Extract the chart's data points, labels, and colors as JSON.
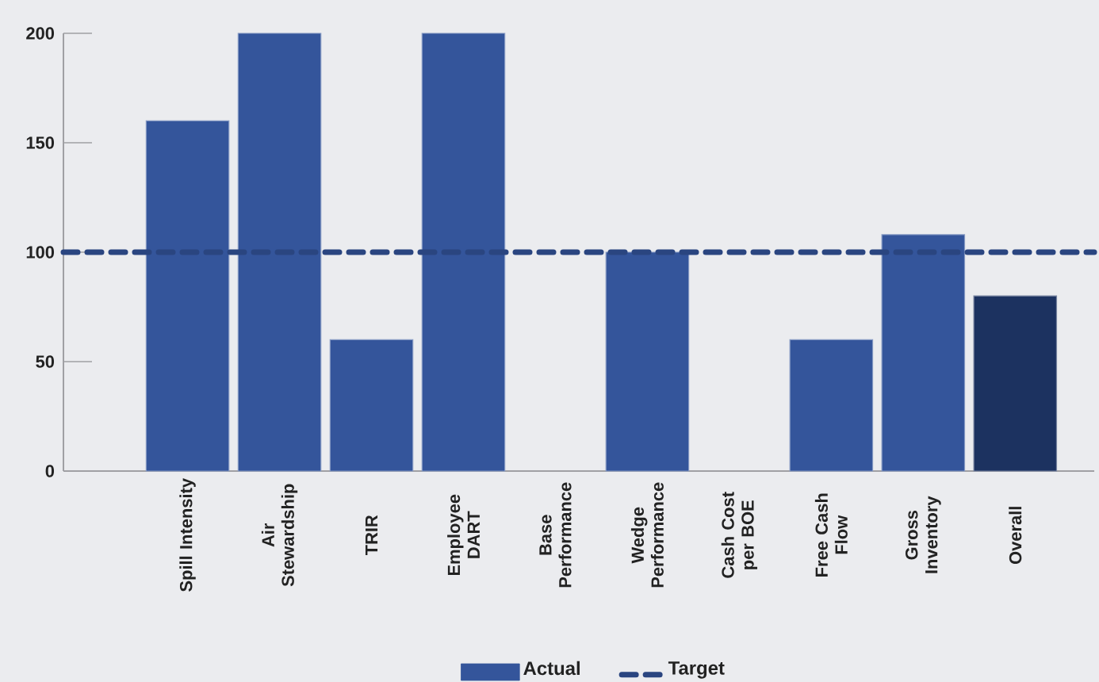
{
  "chart_data": {
    "type": "bar",
    "categories": [
      "Spill Intensity",
      "Air Stewardship",
      "TRIR",
      "Employee DART",
      "Base Performance",
      "Wedge Performance",
      "Cash Cost per BOE",
      "Free Cash Flow",
      "Gross Inventory",
      "Overall"
    ],
    "series": [
      {
        "name": "Actual",
        "colors": [
          "#34559b",
          "#34559b",
          "#34559b",
          "#34559b",
          "#34559b",
          "#34559b",
          "#34559b",
          "#34559b",
          "#34559b",
          "#1c3260"
        ],
        "values": [
          160,
          200,
          60,
          200,
          null,
          100,
          null,
          60,
          108,
          80
        ]
      }
    ],
    "ylim": [
      0,
      200
    ],
    "yticks": [
      0,
      50,
      100,
      150,
      200
    ],
    "ref_lines": [
      {
        "axis": "y",
        "value": 100,
        "label": "Target",
        "color": "#2a4580",
        "line_style": "dashed"
      }
    ],
    "legend": "bottom"
  }
}
